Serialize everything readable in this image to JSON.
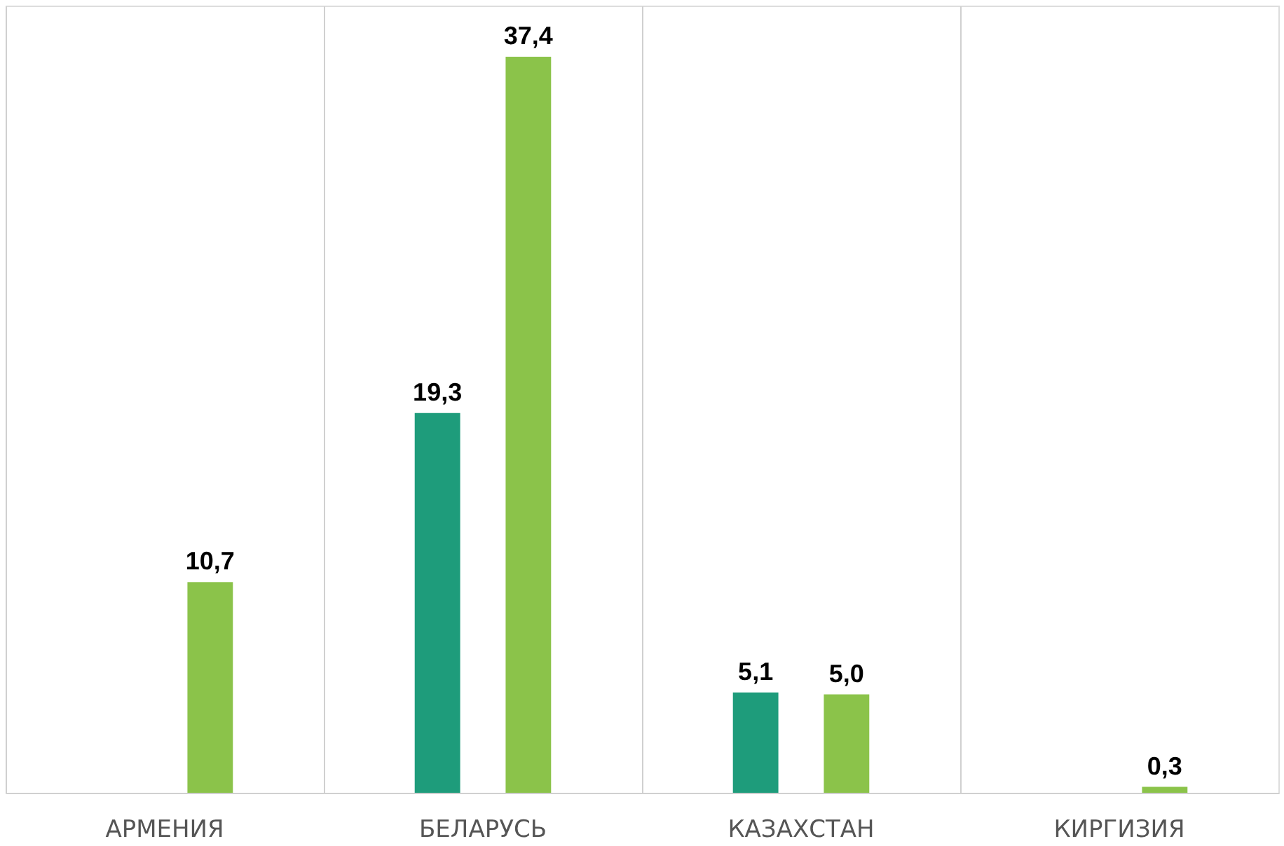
{
  "chart_data": {
    "type": "bar",
    "categories": [
      "АРМЕНИЯ",
      "БЕЛАРУСЬ",
      "КАЗАХСТАН",
      "КИРГИЗИЯ"
    ],
    "series": [
      {
        "color": "#1e9c7b",
        "values": [
          null,
          19.3,
          5.1,
          null
        ],
        "value_labels": [
          null,
          "19,3",
          "5,1",
          null
        ]
      },
      {
        "color": "#8bc34a",
        "values": [
          10.7,
          37.4,
          5.0,
          0.3
        ],
        "value_labels": [
          "10,7",
          "37,4",
          "5,0",
          "0,3"
        ]
      }
    ],
    "grid": "x",
    "legend": false,
    "tick_labels": "x"
  }
}
